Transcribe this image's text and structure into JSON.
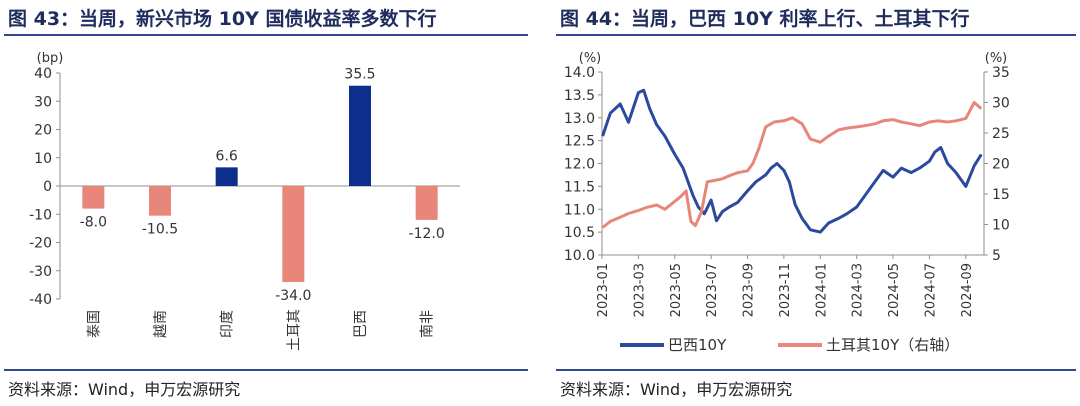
{
  "left": {
    "title": "图 43：当周，新兴市场 10Y 国债收益率多数下行",
    "source": "资料来源：Wind，申万宏源研究"
  },
  "right": {
    "title": "图 44：当周，巴西 10Y 利率上行、土耳其下行",
    "source": "资料来源：Wind，申万宏源研究"
  },
  "colors": {
    "navy": "#1f3f8f",
    "salmon": "#e8867a",
    "rule": "#2e4a8c",
    "axis": "#8f8f8f"
  },
  "chart_data": [
    {
      "type": "bar",
      "unit": "(bp)",
      "ylim": [
        -40,
        40
      ],
      "yticks": [
        40,
        30,
        20,
        10,
        0,
        -10,
        -20,
        -30,
        -40
      ],
      "categories": [
        "泰国",
        "越南",
        "印度",
        "土耳其",
        "巴西",
        "南非"
      ],
      "values": [
        -8.0,
        -10.5,
        6.6,
        -34.0,
        35.5,
        -12.0
      ],
      "labels": [
        "-8.0",
        "-10.5",
        "6.6",
        "-34.0",
        "35.5",
        "-12.0"
      ],
      "colors": [
        "#e8867a",
        "#e8867a",
        "#0d2e8c",
        "#e8867a",
        "#0d2e8c",
        "#e8867a"
      ]
    },
    {
      "type": "line",
      "left_unit": "(%)",
      "right_unit": "(%)",
      "ylim_left": [
        10.0,
        14.0
      ],
      "ylim_right": [
        5,
        35
      ],
      "yticks_left": [
        "14.0",
        "13.5",
        "13.0",
        "12.5",
        "12.0",
        "11.5",
        "11.0",
        "10.5",
        "10.0"
      ],
      "yticks_right": [
        "35",
        "30",
        "25",
        "20",
        "15",
        "10",
        "5"
      ],
      "xlim": [
        "2023-01",
        "2024-10"
      ],
      "xticks": [
        "2023-01",
        "2023-03",
        "2023-05",
        "2023-07",
        "2023-09",
        "2023-11",
        "2024-01",
        "2024-03",
        "2024-05",
        "2024-07",
        "2024-09"
      ],
      "series": [
        {
          "name": "巴西10Y",
          "axis": "left",
          "color": "#2b4a9e",
          "x": [
            "2023-01-02",
            "2023-01-15",
            "2023-02-01",
            "2023-02-15",
            "2023-03-01",
            "2023-03-10",
            "2023-03-20",
            "2023-04-01",
            "2023-04-15",
            "2023-05-01",
            "2023-05-15",
            "2023-06-01",
            "2023-06-10",
            "2023-06-20",
            "2023-07-01",
            "2023-07-10",
            "2023-07-20",
            "2023-08-01",
            "2023-08-15",
            "2023-09-01",
            "2023-09-15",
            "2023-10-01",
            "2023-10-10",
            "2023-10-20",
            "2023-11-01",
            "2023-11-10",
            "2023-11-20",
            "2023-12-01",
            "2023-12-15",
            "2024-01-01",
            "2024-01-15",
            "2024-02-01",
            "2024-02-15",
            "2024-03-01",
            "2024-03-15",
            "2024-04-01",
            "2024-04-15",
            "2024-05-01",
            "2024-05-15",
            "2024-06-01",
            "2024-06-15",
            "2024-07-01",
            "2024-07-10",
            "2024-07-20",
            "2024-08-01",
            "2024-08-15",
            "2024-09-01",
            "2024-09-15",
            "2024-09-27"
          ],
          "y": [
            12.6,
            13.1,
            13.3,
            12.9,
            13.55,
            13.6,
            13.2,
            12.85,
            12.6,
            12.2,
            11.9,
            11.3,
            11.05,
            10.9,
            11.2,
            10.75,
            10.95,
            11.05,
            11.15,
            11.4,
            11.6,
            11.75,
            11.9,
            12.0,
            11.85,
            11.6,
            11.1,
            10.8,
            10.55,
            10.5,
            10.7,
            10.8,
            10.9,
            11.05,
            11.3,
            11.6,
            11.85,
            11.7,
            11.9,
            11.8,
            11.9,
            12.05,
            12.25,
            12.35,
            12.0,
            11.8,
            11.5,
            11.95,
            12.2
          ]
        },
        {
          "name": "土耳其10Y（右轴）",
          "axis": "right",
          "color": "#e8867a",
          "x": [
            "2023-01-02",
            "2023-01-15",
            "2023-02-01",
            "2023-02-15",
            "2023-03-01",
            "2023-03-15",
            "2023-04-01",
            "2023-04-15",
            "2023-05-01",
            "2023-05-10",
            "2023-05-20",
            "2023-05-28",
            "2023-06-05",
            "2023-06-15",
            "2023-06-25",
            "2023-07-05",
            "2023-07-20",
            "2023-08-01",
            "2023-08-15",
            "2023-09-01",
            "2023-09-10",
            "2023-09-20",
            "2023-10-01",
            "2023-10-15",
            "2023-11-01",
            "2023-11-15",
            "2023-12-01",
            "2023-12-15",
            "2024-01-01",
            "2024-01-15",
            "2024-02-01",
            "2024-02-15",
            "2024-03-01",
            "2024-03-15",
            "2024-04-01",
            "2024-04-15",
            "2024-05-01",
            "2024-05-15",
            "2024-06-01",
            "2024-06-15",
            "2024-07-01",
            "2024-07-15",
            "2024-08-01",
            "2024-08-15",
            "2024-09-01",
            "2024-09-15",
            "2024-09-27"
          ],
          "y": [
            9.5,
            10.5,
            11.2,
            11.8,
            12.3,
            12.8,
            13.2,
            12.5,
            13.8,
            14.5,
            15.5,
            10.5,
            9.8,
            12.0,
            17.0,
            17.2,
            17.5,
            18.0,
            18.5,
            18.8,
            20.0,
            22.5,
            26.0,
            26.8,
            27.0,
            27.5,
            26.5,
            24.0,
            23.5,
            24.5,
            25.5,
            25.8,
            26.0,
            26.2,
            26.5,
            27.0,
            27.2,
            26.8,
            26.5,
            26.2,
            26.8,
            27.0,
            26.8,
            27.0,
            27.4,
            30.0,
            29.0
          ]
        }
      ]
    }
  ]
}
